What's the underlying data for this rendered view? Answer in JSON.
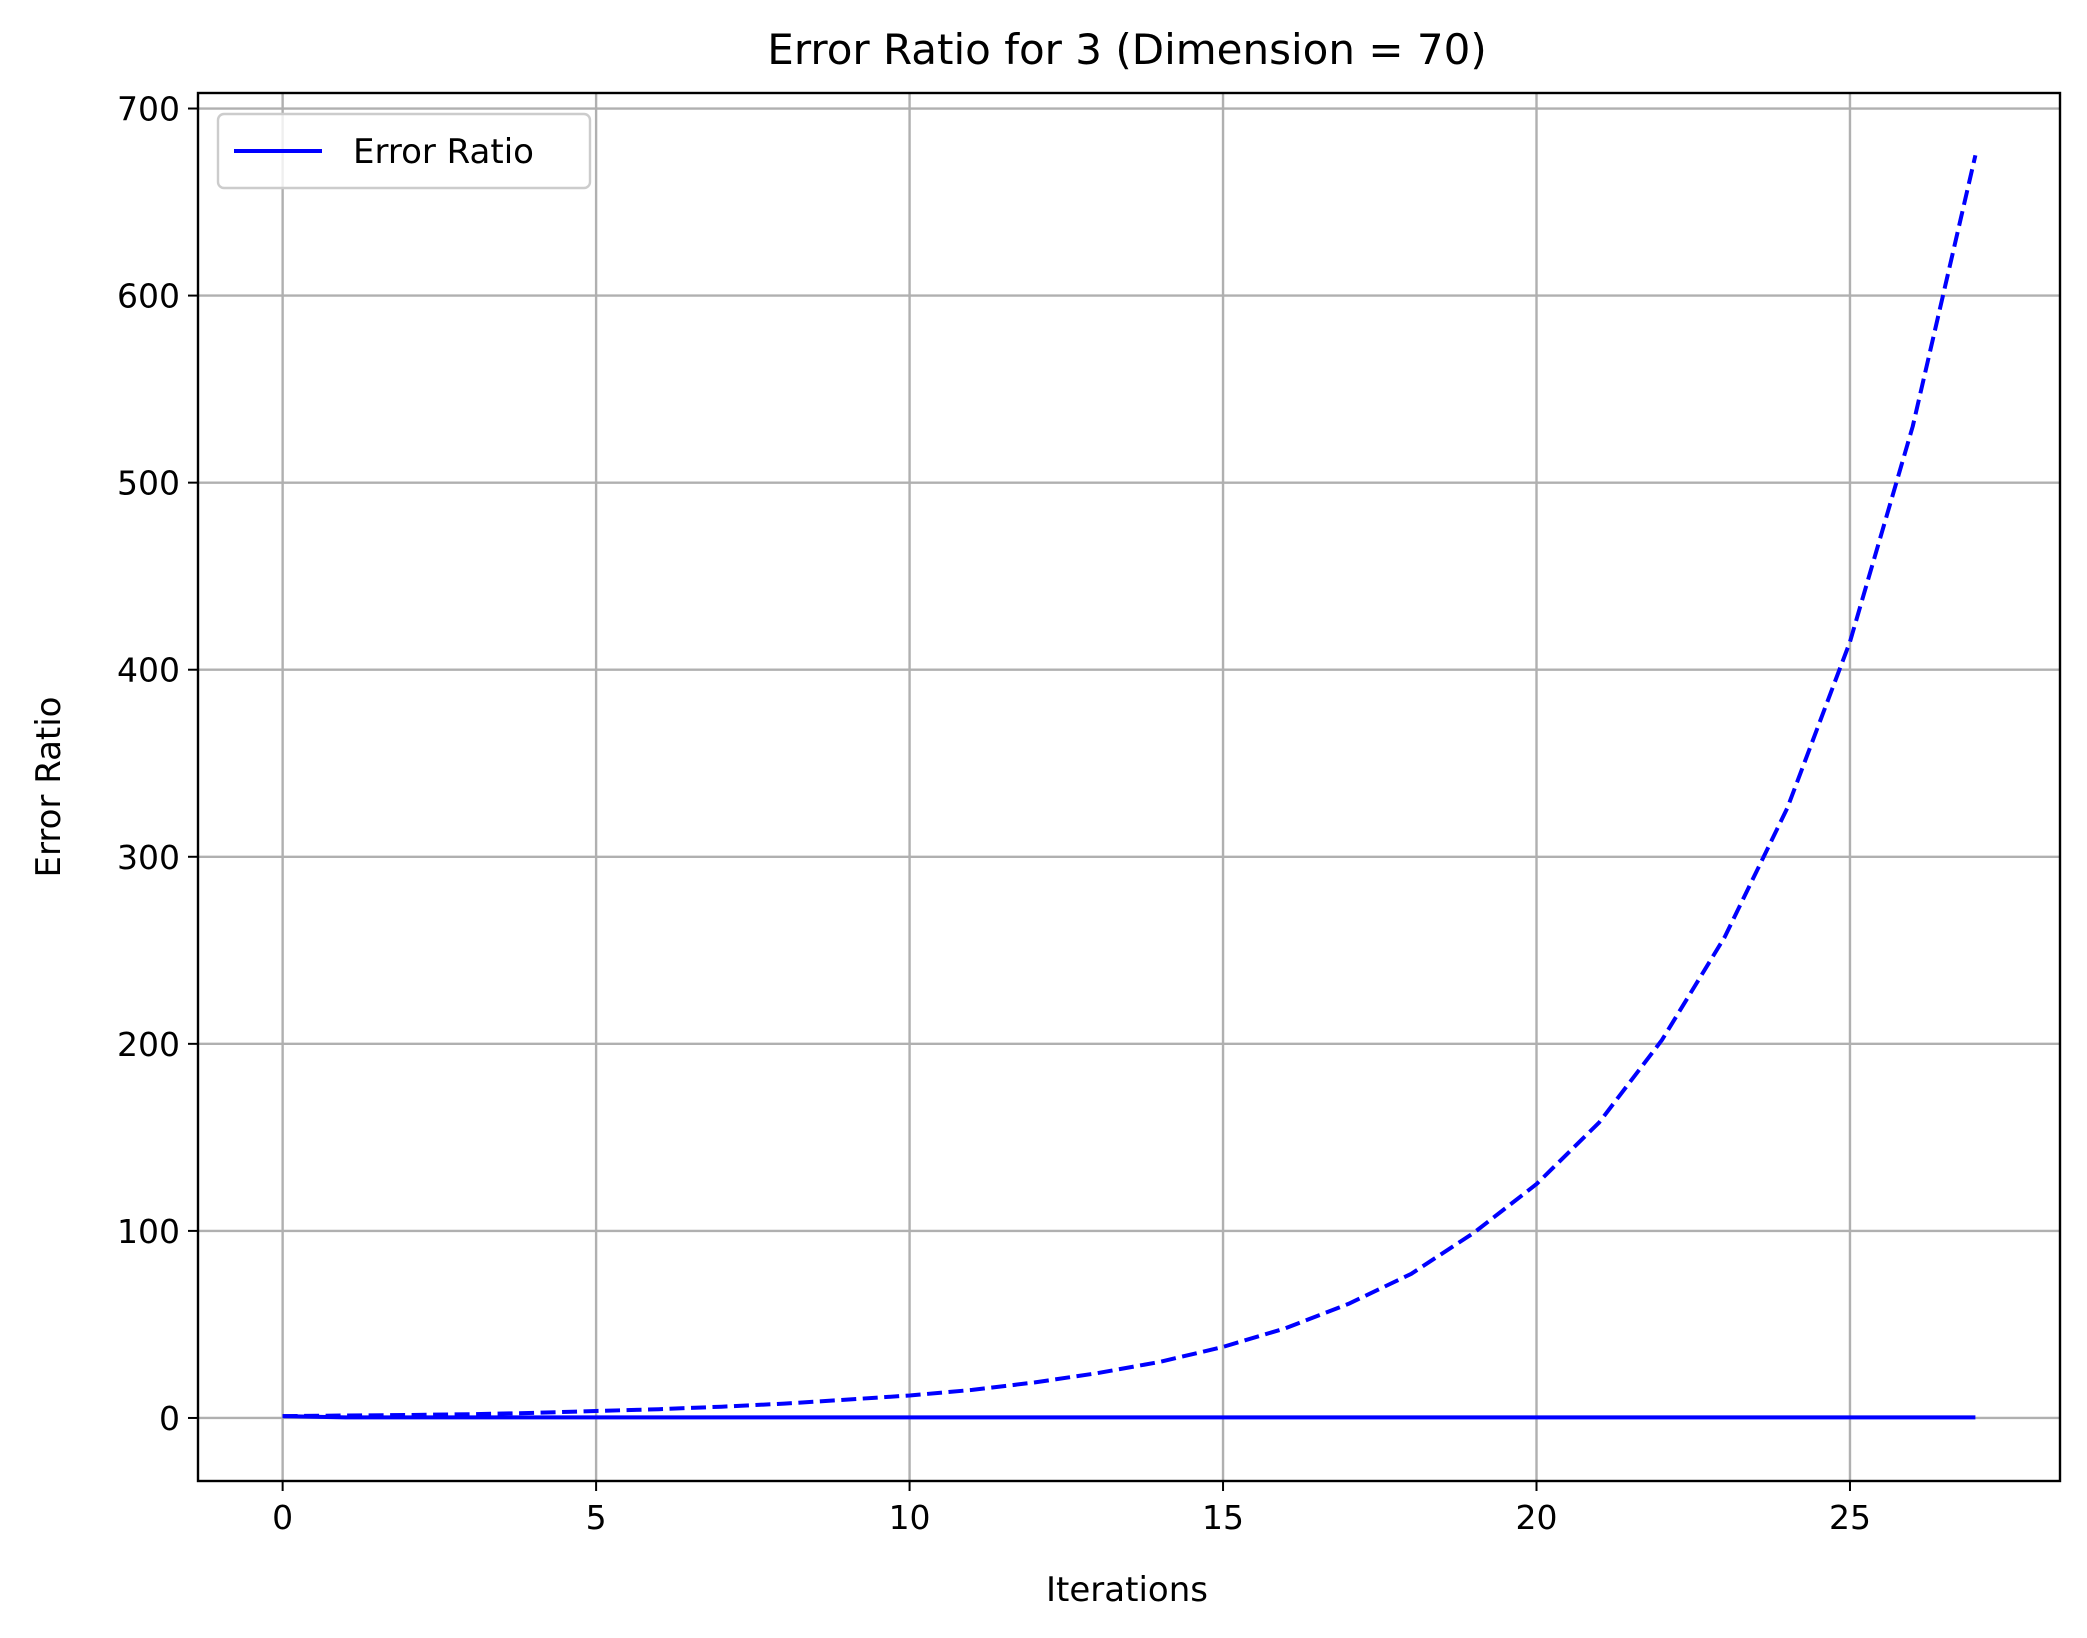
{
  "chart_data": {
    "type": "line",
    "title": "Error Ratio for 3 (Dimension = 70)",
    "xlabel": "Iterations",
    "ylabel": "Error Ratio",
    "xlim": [
      -1.35,
      28.35
    ],
    "ylim": [
      -33.7,
      708.3
    ],
    "xticks": [
      0,
      5,
      10,
      15,
      20,
      25
    ],
    "yticks": [
      0,
      100,
      200,
      300,
      400,
      500,
      600,
      700
    ],
    "grid": true,
    "legend": {
      "position": "top-left",
      "entries": [
        "Error Ratio"
      ]
    },
    "series": [
      {
        "name": "Error Ratio",
        "style": "solid",
        "color": "#0000ff",
        "x": [
          0,
          1,
          2,
          3,
          4,
          5,
          6,
          7,
          8,
          9,
          10,
          11,
          12,
          13,
          14,
          15,
          16,
          17,
          18,
          19,
          20,
          21,
          22,
          23,
          24,
          25,
          26,
          27
        ],
        "values": [
          1.0,
          0.3,
          0.3,
          0.3,
          0.3,
          0.3,
          0.3,
          0.3,
          0.3,
          0.3,
          0.3,
          0.3,
          0.3,
          0.3,
          0.3,
          0.3,
          0.3,
          0.3,
          0.3,
          0.3,
          0.3,
          0.3,
          0.3,
          0.3,
          0.3,
          0.3,
          0.3,
          0.3
        ]
      },
      {
        "style": "dashed",
        "color": "#0000ff",
        "x": [
          0,
          1,
          2,
          3,
          4,
          5,
          6,
          7,
          8,
          9,
          10,
          11,
          12,
          13,
          14,
          15,
          16,
          17,
          18,
          19,
          20,
          21,
          22,
          23,
          24,
          25,
          26,
          27
        ],
        "values": [
          1.0,
          1.3,
          1.6,
          2.0,
          2.7,
          3.7,
          4.7,
          6.0,
          7.7,
          9.8,
          12.0,
          15.0,
          19.0,
          24.0,
          30.0,
          38.0,
          48.0,
          61.0,
          77.0,
          99.0,
          125.0,
          158.0,
          202.0,
          257.0,
          326.0,
          415.0,
          530.0,
          675.0
        ]
      }
    ]
  }
}
